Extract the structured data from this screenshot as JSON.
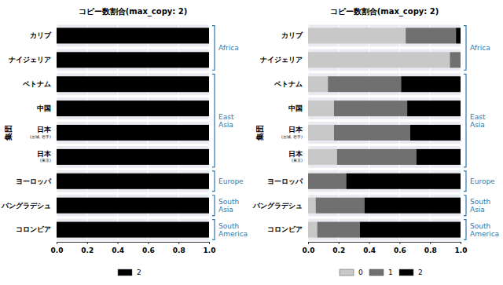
{
  "chart_data": [
    {
      "type": "bar",
      "orientation": "horizontal",
      "stacked": true,
      "grid": true,
      "legend": "bottom",
      "title": "コピー数割合(max_copy: 2)",
      "ylabel": "集団",
      "categories": [
        "カリブ",
        "ナイジェリア",
        "ベトナム",
        "中国",
        "日本\n(宮城, 岩手)",
        "日本\n(東京)",
        "ヨーロッパ",
        "バングラデシュ",
        "コロンビア"
      ],
      "series": [
        {
          "name": "2",
          "color": "#000000",
          "values": [
            1,
            1,
            1,
            1,
            1,
            1,
            1,
            1,
            1
          ]
        }
      ],
      "xlim": [
        0,
        1
      ],
      "xticks": [
        {
          "value": 0,
          "label": "0.0"
        },
        0.2,
        0.4,
        0.6,
        0.8,
        {
          "value": 1,
          "label": "1.0"
        }
      ],
      "groups": [
        {
          "label": "Africa",
          "categories": [
            "カリブ",
            "ナイジェリア"
          ]
        },
        {
          "label": "East Asia",
          "categories": [
            "ベトナム",
            "中国",
            "日本\n(宮城, 岩手)",
            "日本\n(東京)"
          ]
        },
        {
          "label": "Europe",
          "categories": [
            "ヨーロッパ"
          ]
        },
        {
          "label": "South Asia",
          "categories": [
            "バングラデシュ"
          ]
        },
        {
          "label": "South America",
          "categories": [
            "コロンビア"
          ]
        }
      ]
    },
    {
      "type": "bar",
      "orientation": "horizontal",
      "stacked": true,
      "grid": true,
      "legend": "bottom",
      "title": "コピー数割合(max_copy: 2)",
      "ylabel": "集団",
      "categories": [
        "カリブ",
        "ナイジェリア",
        "ベトナム",
        "中国",
        "日本\n(宮城, 岩手)",
        "日本\n(東京)",
        "ヨーロッパ",
        "バングラデシュ",
        "コロンビア"
      ],
      "series": [
        {
          "name": "0",
          "color": "#c8c8c8",
          "values": [
            0.64,
            0.93,
            0.13,
            0.17,
            0.17,
            0.19,
            0,
            0.05,
            0.06
          ]
        },
        {
          "name": "1",
          "color": "#707070",
          "values": [
            0.33,
            0.07,
            0.48,
            0.48,
            0.5,
            0.52,
            0.25,
            0.32,
            0.28
          ]
        },
        {
          "name": "2",
          "color": "#000000",
          "values": [
            0.03,
            0,
            0.39,
            0.35,
            0.33,
            0.29,
            0.75,
            0.63,
            0.66
          ]
        }
      ],
      "xlim": [
        0,
        1
      ],
      "xticks": [
        {
          "value": 0,
          "label": "0.0"
        },
        0.2,
        0.4,
        0.6,
        0.8,
        {
          "value": 1,
          "label": "1.0"
        }
      ],
      "groups": [
        {
          "label": "Africa",
          "categories": [
            "カリブ",
            "ナイジェリア"
          ]
        },
        {
          "label": "East Asia",
          "categories": [
            "ベトナム",
            "中国",
            "日本\n(宮城, 岩手)",
            "日本\n(東京)"
          ]
        },
        {
          "label": "Europe",
          "categories": [
            "ヨーロッパ"
          ]
        },
        {
          "label": "South Asia",
          "categories": [
            "バングラデシュ"
          ]
        },
        {
          "label": "South America",
          "categories": [
            "コロンビア"
          ]
        }
      ]
    }
  ]
}
